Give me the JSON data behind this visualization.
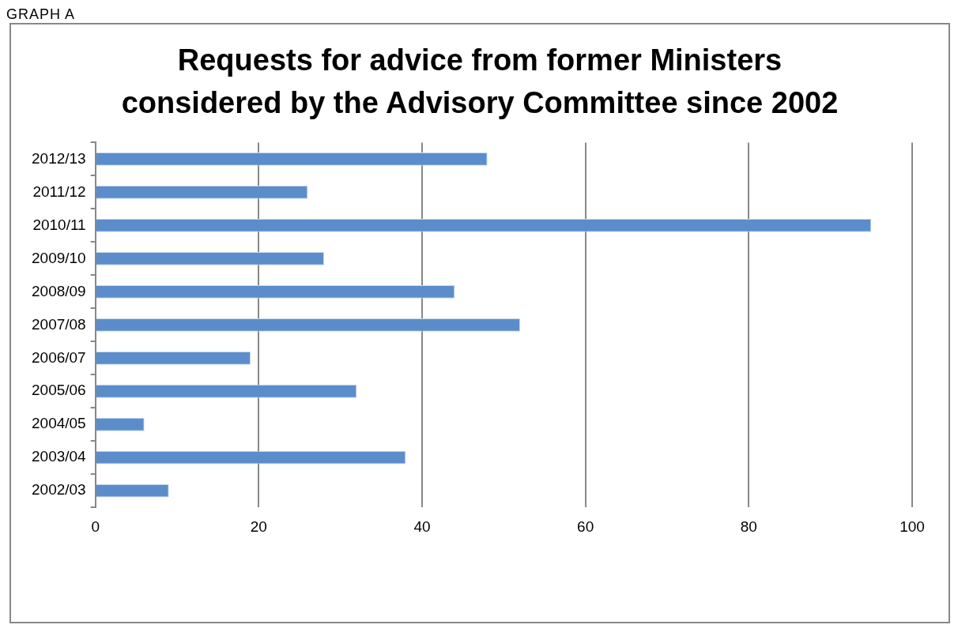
{
  "chart_data": {
    "type": "bar",
    "orientation": "horizontal",
    "title": "Requests for advice from former Ministers considered by the Advisory Committee since 2002",
    "annotations": [
      "GRAPH A"
    ],
    "categories": [
      "2012/13",
      "2011/12",
      "2010/11",
      "2009/10",
      "2008/09",
      "2007/08",
      "2006/07",
      "2005/06",
      "2004/05",
      "2003/04",
      "2002/03"
    ],
    "values": [
      48,
      26,
      95,
      28,
      44,
      52,
      19,
      32,
      6,
      38,
      9
    ],
    "color": "#5b8dca",
    "xlim": [
      0,
      100
    ],
    "xticks": [
      0,
      20,
      40,
      60,
      80,
      100
    ],
    "grid": "x"
  }
}
